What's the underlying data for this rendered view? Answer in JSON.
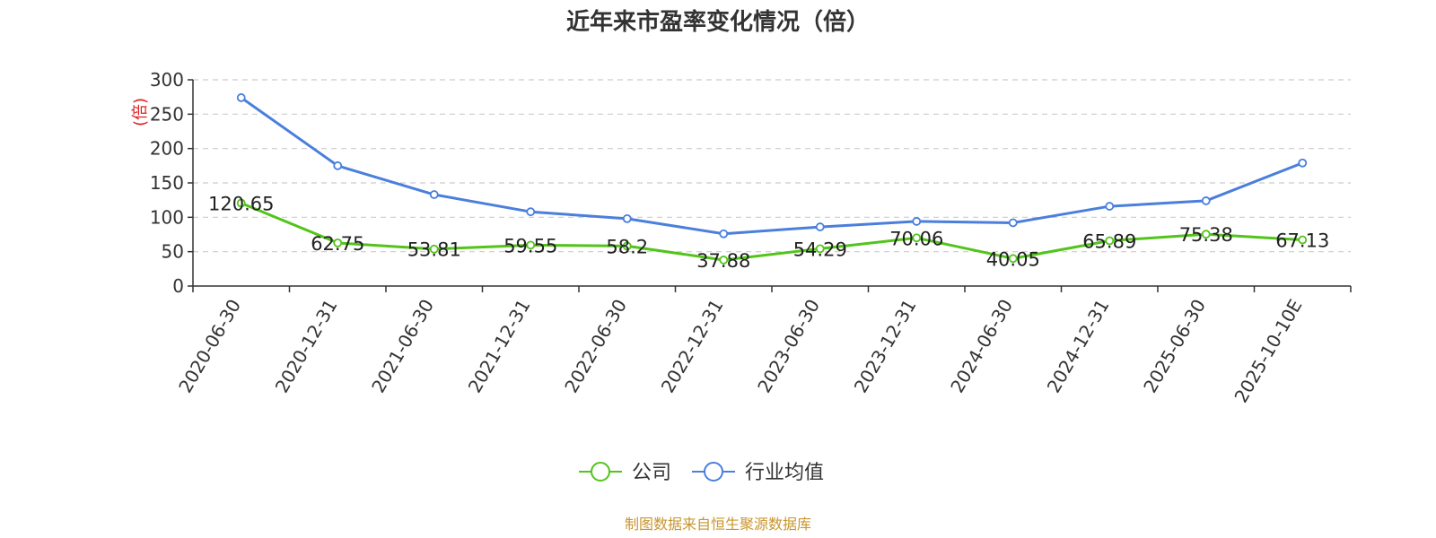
{
  "chart_data": {
    "type": "line",
    "title": "近年来市盈率变化情况（倍）",
    "ylabel": "(倍)",
    "xlabel": "",
    "ylim": [
      0,
      300
    ],
    "yticks": [
      0,
      50,
      100,
      150,
      200,
      250,
      300
    ],
    "categories": [
      "2020-06-30",
      "2020-12-31",
      "2021-06-30",
      "2021-12-31",
      "2022-06-30",
      "2022-12-31",
      "2023-06-30",
      "2023-12-31",
      "2024-06-30",
      "2024-12-31",
      "2025-06-30",
      "2025-10-10E"
    ],
    "grid": true,
    "legend_position": "bottom",
    "series": [
      {
        "name": "公司",
        "color": "#52c41a",
        "values": [
          120.65,
          62.75,
          53.81,
          59.55,
          58.2,
          37.88,
          54.29,
          70.06,
          40.05,
          65.89,
          75.38,
          67.13
        ],
        "labels": [
          "120.65",
          "62.75",
          "53.81",
          "59.55",
          "58.2",
          "37.88",
          "54.29",
          "70.06",
          "40.05",
          "65.89",
          "75.38",
          "67.13"
        ]
      },
      {
        "name": "行业均值",
        "color": "#4a7fdc",
        "values": [
          274,
          175,
          133,
          108,
          98,
          76,
          86,
          94,
          92,
          116,
          124,
          179
        ]
      }
    ]
  },
  "source": "制图数据来自恒生聚源数据库"
}
